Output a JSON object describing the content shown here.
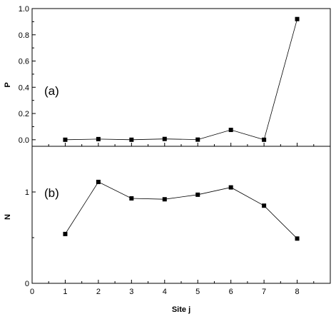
{
  "chart_data": [
    {
      "type": "line",
      "panel_label": "(a)",
      "ylabel": "P",
      "xlabel": "",
      "xlim": [
        0,
        9
      ],
      "ylim": [
        -0.05,
        1.0
      ],
      "x_ticks": [
        0,
        1,
        2,
        3,
        4,
        5,
        6,
        7,
        8
      ],
      "y_ticks": [
        "0.0",
        "0.2",
        "0.4",
        "0.6",
        "0.8",
        "1.0"
      ],
      "series": [
        {
          "x": [
            1,
            2,
            3,
            4,
            5,
            6,
            7,
            8
          ],
          "values": [
            0.0,
            0.005,
            0.0,
            0.006,
            0.001,
            0.075,
            0.0,
            0.92
          ]
        }
      ],
      "marker": "square",
      "color": "#000000"
    },
    {
      "type": "line",
      "panel_label": "(b)",
      "ylabel": "N",
      "xlabel": "Site j",
      "xlim": [
        0,
        9
      ],
      "ylim": [
        0,
        1.5
      ],
      "x_ticks": [
        "0",
        "1",
        "2",
        "3",
        "4",
        "5",
        "6",
        "7",
        "8"
      ],
      "y_ticks": [
        "0",
        "1"
      ],
      "series": [
        {
          "x": [
            1,
            2,
            3,
            4,
            5,
            6,
            7,
            8
          ],
          "values": [
            0.54,
            1.11,
            0.93,
            0.92,
            0.97,
            1.05,
            0.85,
            0.49
          ]
        }
      ],
      "marker": "square",
      "color": "#000000"
    }
  ]
}
